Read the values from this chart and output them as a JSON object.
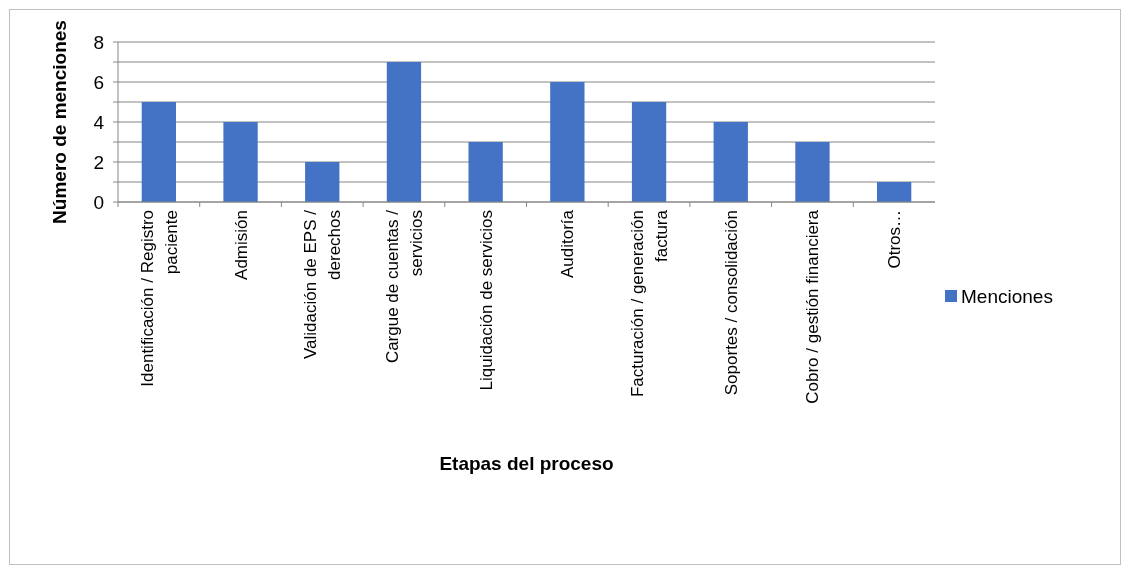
{
  "chart_data": {
    "type": "bar",
    "xlabel": "Etapas del proceso",
    "ylabel": "Número de menciones",
    "categories": [
      "Identificación / Registro paciente",
      "Admisión",
      "Validación de EPS / derechos",
      "Cargue de cuentas / servicios",
      "Liquidación de servicios",
      "Auditoría",
      "Facturación / generación factura",
      "Soportes / consolidación",
      "Cobro / gestión financiera",
      "Otros…"
    ],
    "series": [
      {
        "name": "Menciones",
        "color": "#4472c4",
        "values": [
          5,
          4,
          2,
          7,
          3,
          6,
          5,
          4,
          3,
          1
        ]
      }
    ],
    "ylim": [
      0,
      8
    ],
    "yticks": [
      0,
      {
        "value": 1,
        "label": null
      },
      2,
      {
        "value": 3,
        "label": null
      },
      4,
      {
        "value": 5,
        "label": null
      },
      6,
      {
        "value": 7,
        "label": null
      },
      8
    ],
    "grid": "y",
    "legend": "right"
  }
}
